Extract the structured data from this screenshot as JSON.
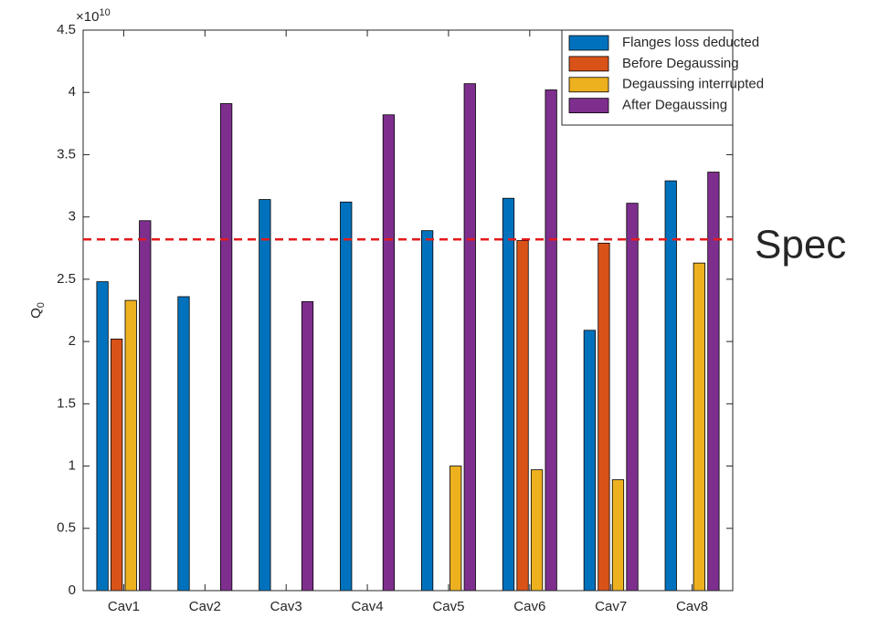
{
  "chart_data": {
    "type": "bar",
    "categories": [
      "Cav1",
      "Cav2",
      "Cav3",
      "Cav4",
      "Cav5",
      "Cav6",
      "Cav7",
      "Cav8"
    ],
    "series": [
      {
        "name": "Flanges loss deducted",
        "color": "#0072BD",
        "values": [
          2.48,
          2.36,
          3.14,
          3.12,
          2.89,
          3.15,
          2.09,
          3.29
        ]
      },
      {
        "name": "Before Degaussing",
        "color": "#D95319",
        "values": [
          2.02,
          0,
          0,
          0,
          0,
          2.81,
          2.79,
          0
        ]
      },
      {
        "name": "Degaussing interrupted",
        "color": "#EDB120",
        "values": [
          2.33,
          0,
          0,
          0,
          1.0,
          0.97,
          0.89,
          2.63
        ]
      },
      {
        "name": "After Degaussing",
        "color": "#7E2F8E",
        "values": [
          2.97,
          3.91,
          2.32,
          3.82,
          4.07,
          4.02,
          3.11,
          3.36
        ]
      }
    ],
    "ylim": [
      0,
      4.5
    ],
    "yticks": [
      0,
      0.5,
      1,
      1.5,
      2,
      2.5,
      3,
      3.5,
      4,
      4.5
    ],
    "y_label": "Q",
    "y_label_sub": "0",
    "exponent_base": "×10",
    "exponent_power": "10",
    "spec_line": 2.82,
    "spec_label": "Spec",
    "spec_color": "#e41a1c",
    "legend": "top-right"
  }
}
